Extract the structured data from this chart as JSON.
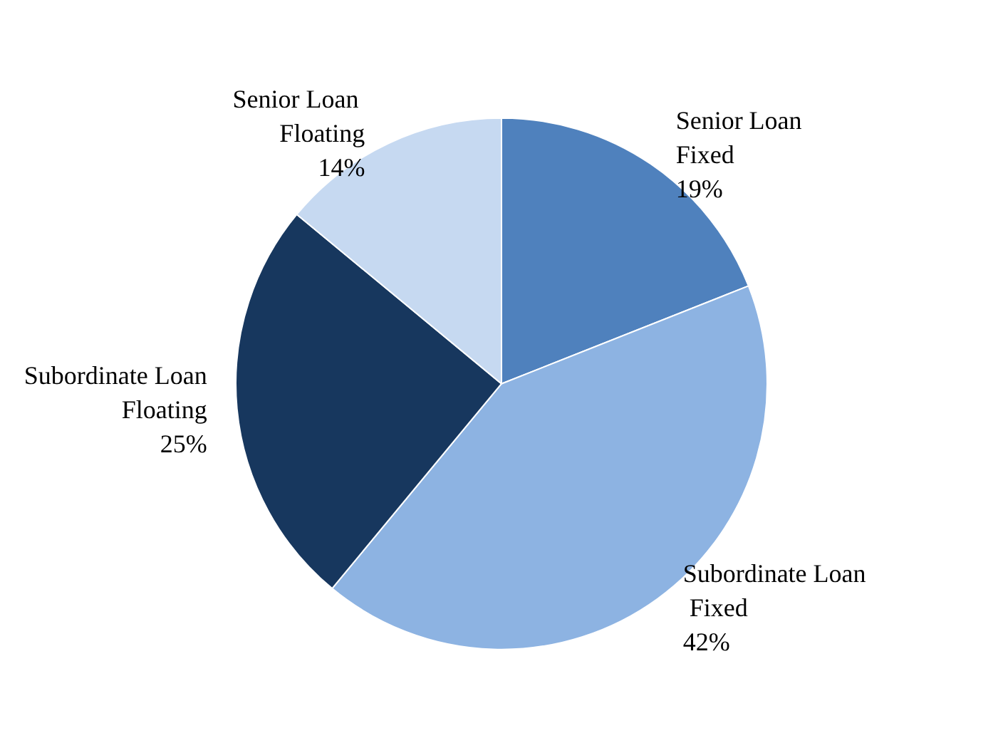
{
  "chart_data": {
    "type": "pie",
    "categories": [
      "Senior Loan Fixed",
      "Subordinate Loan Fixed",
      "Subordinate Loan Floating",
      "Senior Loan Floating"
    ],
    "values": [
      19,
      42,
      25,
      14
    ],
    "colors": [
      "#4f81bd",
      "#8db3e2",
      "#17375e",
      "#c6d9f1"
    ],
    "value_labels": [
      "19%",
      "42%",
      "25%",
      "14%"
    ]
  }
}
